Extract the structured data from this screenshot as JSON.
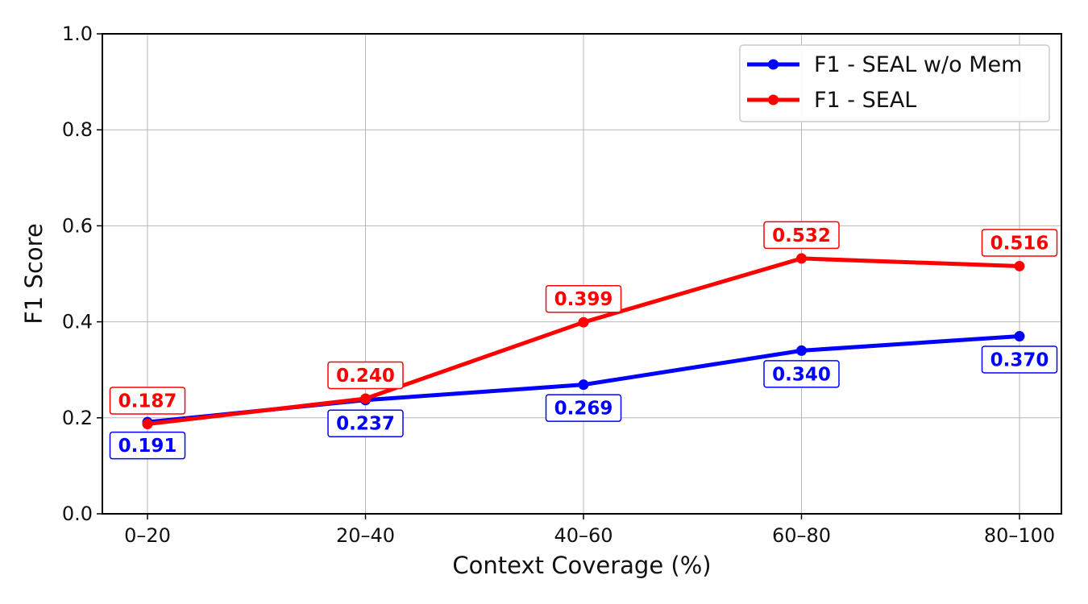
{
  "chart_data": {
    "type": "line",
    "categories": [
      "0–20",
      "20–40",
      "40–60",
      "60–80",
      "80–100"
    ],
    "xlabel": "Context Coverage (%)",
    "ylabel": "F1 Score",
    "ylim": [
      0,
      1.0
    ],
    "yticks": [
      "0.0",
      "0.2",
      "0.4",
      "0.6",
      "0.8",
      "1.0"
    ],
    "grid": true,
    "legend_position": "top-right",
    "series": [
      {
        "name": "F1 - SEAL w/o Mem",
        "color": "#0000ff",
        "values": [
          0.191,
          0.237,
          0.269,
          0.34,
          0.37
        ],
        "labels": [
          "0.191",
          "0.237",
          "0.269",
          "0.340",
          "0.370"
        ],
        "label_placement": "below"
      },
      {
        "name": "F1 - SEAL",
        "color": "#ff0000",
        "values": [
          0.187,
          0.24,
          0.399,
          0.532,
          0.516
        ],
        "labels": [
          "0.187",
          "0.240",
          "0.399",
          "0.532",
          "0.516"
        ],
        "label_placement": "above"
      }
    ]
  }
}
